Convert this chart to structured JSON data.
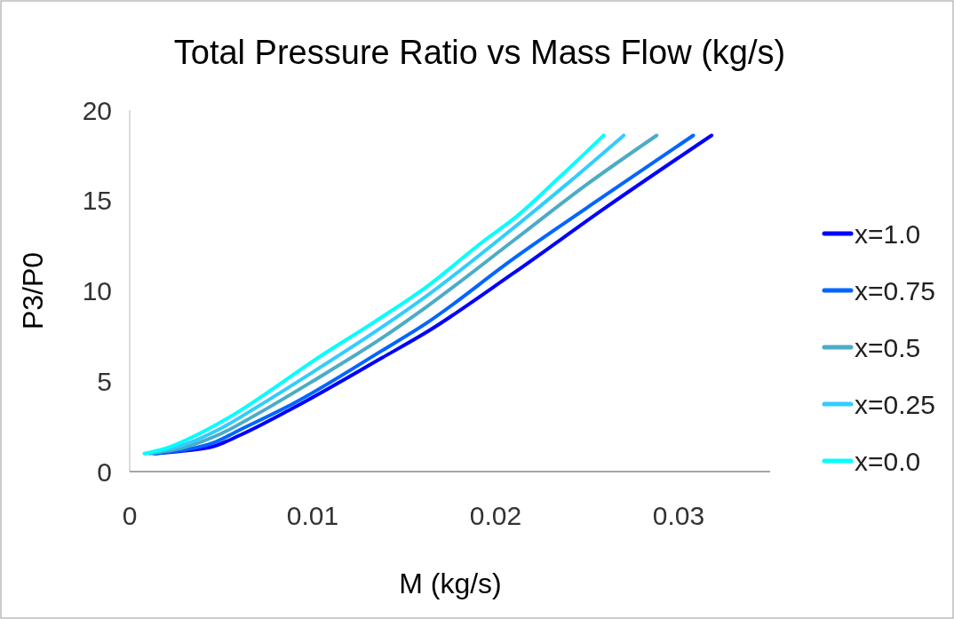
{
  "chart_data": {
    "type": "line",
    "title": "Total Pressure Ratio vs Mass Flow (kg/s)",
    "xlabel": "M (kg/s)",
    "ylabel": "P3/P0",
    "xlim": [
      0,
      0.035
    ],
    "xticks": [
      0,
      0.01,
      0.02,
      0.03
    ],
    "ylim": [
      0,
      20
    ],
    "yticks": [
      0,
      5,
      10,
      15,
      20
    ],
    "grid": false,
    "legend": "right",
    "marker": "none",
    "line_style": "solid",
    "series": [
      {
        "name": "x=1.0",
        "color": "#0000ff",
        "x": [
          0.0014,
          0.003,
          0.0046,
          0.006,
          0.0089,
          0.0138,
          0.0162,
          0.021,
          0.026,
          0.0318
        ],
        "values": [
          1,
          1.15,
          1.4,
          2.0,
          3.5,
          6.3,
          7.7,
          11.0,
          14.6,
          18.6
        ]
      },
      {
        "name": "x=0.75",
        "color": "#0066ff",
        "x": [
          0.0013,
          0.003,
          0.0046,
          0.006,
          0.009,
          0.0138,
          0.0162,
          0.021,
          0.026,
          0.0308
        ],
        "values": [
          1,
          1.2,
          1.6,
          2.3,
          3.8,
          6.7,
          8.2,
          11.8,
          15.3,
          18.6
        ]
      },
      {
        "name": "x=0.5",
        "color": "#4bacc6",
        "x": [
          0.0011,
          0.003,
          0.005,
          0.007,
          0.01,
          0.0138,
          0.0162,
          0.021,
          0.025,
          0.0288
        ],
        "values": [
          1,
          1.35,
          2.1,
          3.2,
          5.0,
          7.4,
          9.1,
          12.8,
          15.9,
          18.6
        ]
      },
      {
        "name": "x=0.25",
        "color": "#33ccff",
        "x": [
          0.0009,
          0.003,
          0.005,
          0.007,
          0.01,
          0.0138,
          0.0162,
          0.021,
          0.024,
          0.027
        ],
        "values": [
          1,
          1.5,
          2.4,
          3.6,
          5.5,
          8.0,
          9.7,
          13.5,
          16.0,
          18.6
        ]
      },
      {
        "name": "x=0.0",
        "color": "#00ffff",
        "x": [
          0.0008,
          0.002,
          0.004,
          0.006,
          0.008,
          0.01,
          0.0134,
          0.0162,
          0.0194,
          0.021,
          0.0235,
          0.0259
        ],
        "values": [
          1,
          1.3,
          2.2,
          3.35,
          4.7,
          6.1,
          8.3,
          10.2,
          12.8,
          14.0,
          16.3,
          18.6
        ]
      }
    ]
  }
}
